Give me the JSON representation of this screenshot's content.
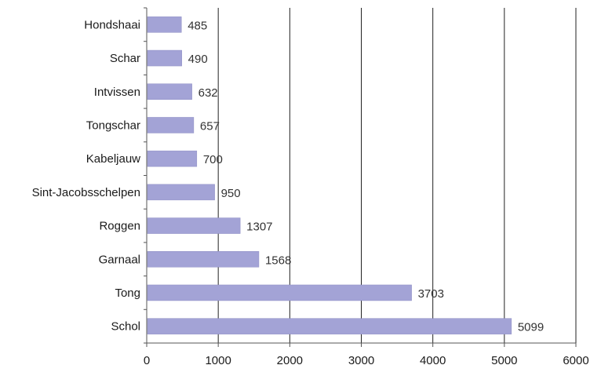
{
  "chart_data": {
    "type": "bar",
    "orientation": "horizontal",
    "categories": [
      "Hondshaai",
      "Schar",
      "Intvissen",
      "Tongschar",
      "Kabeljauw",
      "Sint-Jacobsschelpen",
      "Roggen",
      "Garnaal",
      "Tong",
      "Schol"
    ],
    "values": [
      485,
      490,
      632,
      657,
      700,
      950,
      1307,
      1568,
      3703,
      5099
    ],
    "data_labels": [
      "485",
      "490",
      "632",
      "657",
      "700",
      "950",
      "1307",
      "1568",
      "3703",
      "5099"
    ],
    "xlim": [
      0,
      6000
    ],
    "x_ticks": [
      0,
      1000,
      2000,
      3000,
      4000,
      5000,
      6000
    ],
    "x_tick_labels": [
      "0",
      "1000",
      "2000",
      "3000",
      "4000",
      "5000",
      "6000"
    ],
    "grid": "vertical",
    "legend": "none",
    "bar_color": "#a3a3d6",
    "bar_border_color": "#8e8ec4"
  }
}
